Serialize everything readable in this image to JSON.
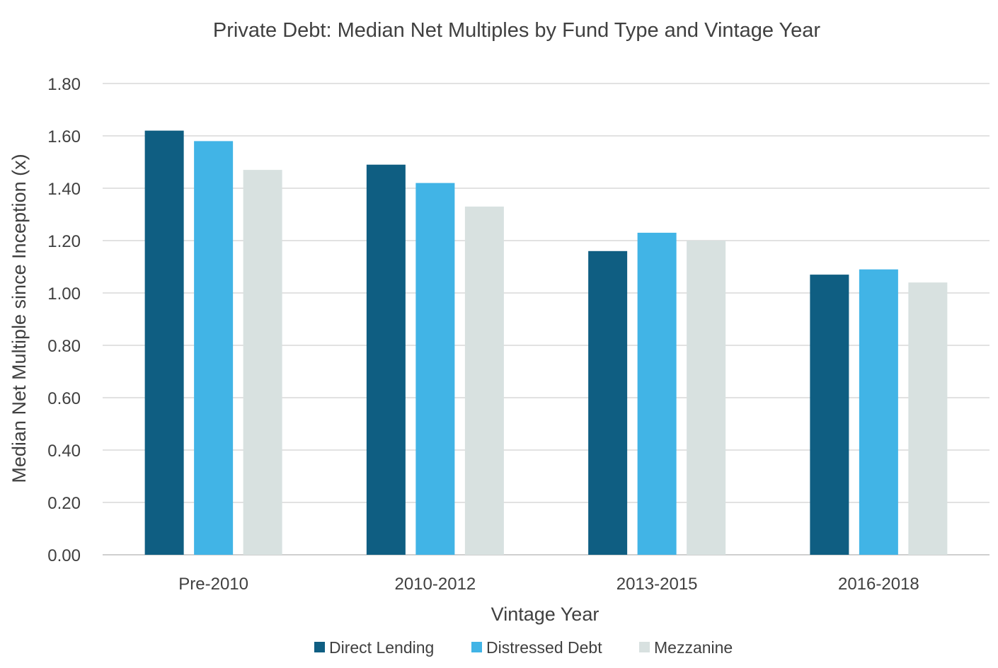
{
  "chart_data": {
    "type": "bar",
    "title": "Private Debt: Median Net Multiples by Fund Type and Vintage Year",
    "xlabel": "Vintage Year",
    "ylabel": "Median Net Multiple since Inception (x)",
    "categories": [
      "Pre-2010",
      "2010-2012",
      "2013-2015",
      "2016-2018"
    ],
    "series": [
      {
        "name": "Direct Lending",
        "color": "#0f5e82",
        "values": [
          1.62,
          1.49,
          1.16,
          1.07
        ]
      },
      {
        "name": "Distressed Debt",
        "color": "#41b4e6",
        "values": [
          1.58,
          1.42,
          1.23,
          1.09
        ]
      },
      {
        "name": "Mezzanine",
        "color": "#d8e1e0",
        "values": [
          1.47,
          1.33,
          1.2,
          1.04
        ]
      }
    ],
    "ylim": [
      0,
      1.8
    ],
    "yticks": [
      "0.00",
      "0.20",
      "0.40",
      "0.60",
      "0.80",
      "1.00",
      "1.20",
      "1.40",
      "1.60",
      "1.80"
    ],
    "grid": true,
    "legend_position": "bottom"
  }
}
